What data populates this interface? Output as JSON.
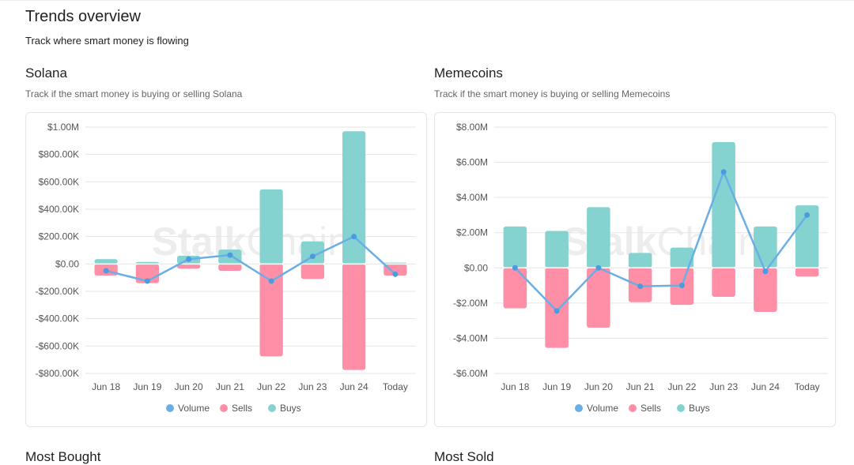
{
  "header": {
    "title": "Trends overview",
    "subtitle": "Track where smart money is flowing"
  },
  "sections": [
    {
      "title": "Solana",
      "subtitle": "Track if the smart money is buying or selling Solana"
    },
    {
      "title": "Memecoins",
      "subtitle": "Track if the smart money is buying or selling Memecoins"
    }
  ],
  "bottom": {
    "left_title": "Most Bought",
    "right_title": "Most Sold"
  },
  "watermark": {
    "bold": "Stalk",
    "light": "Chain"
  },
  "colors": {
    "volume": "#6aaee6",
    "sells": "#fe8fa6",
    "buys": "#84d3d0",
    "grid": "#e6e6e6"
  },
  "chart_data": [
    {
      "type": "bar",
      "categories": [
        "Jun 18",
        "Jun 19",
        "Jun 20",
        "Jun 21",
        "Jun 22",
        "Jun 23",
        "Jun 24",
        "Today"
      ],
      "ylim": [
        -800000,
        1000000
      ],
      "yticks": [
        1000000,
        800000,
        600000,
        400000,
        200000,
        0,
        -200000,
        -400000,
        -600000,
        -800000
      ],
      "ytick_labels": [
        "$1.00M",
        "$800.00K",
        "$600.00K",
        "$400.00K",
        "$200.00K",
        "$0.00",
        "-$200.00K",
        "-$400.00K",
        "-$600.00K",
        "-$800.00K"
      ],
      "legend": "bottom",
      "grid": true,
      "series": [
        {
          "name": "Volume",
          "kind": "line",
          "values": [
            -50000,
            -125000,
            35000,
            65000,
            -125000,
            55000,
            200000,
            -75000
          ]
        },
        {
          "name": "Sells",
          "kind": "bar",
          "values": [
            -85000,
            -140000,
            -35000,
            -50000,
            -675000,
            -110000,
            -775000,
            -85000
          ]
        },
        {
          "name": "Buys",
          "kind": "bar",
          "values": [
            35000,
            15000,
            60000,
            105000,
            545000,
            165000,
            970000,
            10000
          ]
        }
      ]
    },
    {
      "type": "bar",
      "categories": [
        "Jun 18",
        "Jun 19",
        "Jun 20",
        "Jun 21",
        "Jun 22",
        "Jun 23",
        "Jun 24",
        "Today"
      ],
      "ylim": [
        -6000000,
        8000000
      ],
      "yticks": [
        8000000,
        6000000,
        4000000,
        2000000,
        0,
        -2000000,
        -4000000,
        -6000000
      ],
      "ytick_labels": [
        "$8.00M",
        "$6.00M",
        "$4.00M",
        "$2.00M",
        "$0.00",
        "-$2.00M",
        "-$4.00M",
        "-$6.00M"
      ],
      "legend": "bottom",
      "grid": true,
      "series": [
        {
          "name": "Volume",
          "kind": "line",
          "values": [
            0,
            -2450000,
            0,
            -1050000,
            -1000000,
            5450000,
            -200000,
            3000000
          ]
        },
        {
          "name": "Sells",
          "kind": "bar",
          "values": [
            -2300000,
            -4550000,
            -3400000,
            -1950000,
            -2100000,
            -1650000,
            -2500000,
            -500000
          ]
        },
        {
          "name": "Buys",
          "kind": "bar",
          "values": [
            2350000,
            2100000,
            3450000,
            850000,
            1150000,
            7150000,
            2350000,
            3550000
          ]
        }
      ]
    }
  ]
}
